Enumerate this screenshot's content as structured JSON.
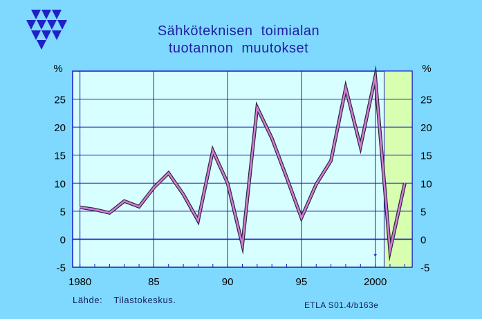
{
  "colors": {
    "background": "#7fd9ff",
    "plot_area": "#d8ffff",
    "forecast_area": "#d8ffb0",
    "grid": "#1818c8",
    "axis_text": "#000000",
    "title": "#2020a0",
    "line_fill": "#d27bd8",
    "line_edge": "#2a2a3a",
    "logo": "#2020c8"
  },
  "logo": {
    "icon": "etla-triangles-logo"
  },
  "chart_data": {
    "type": "line",
    "title": [
      "Sähköteknisen  toimialan",
      "tuotannon  muutokset"
    ],
    "y_unit_left": "%",
    "y_unit_right": "%",
    "xlim": [
      1979.5,
      2002.5
    ],
    "ylim": [
      -5,
      30
    ],
    "x_ticks": [
      1980,
      1985,
      1990,
      1995,
      2000
    ],
    "x_tick_labels": [
      "1980",
      "85",
      "90",
      "95",
      "2000"
    ],
    "y_ticks": [
      -5,
      0,
      5,
      10,
      15,
      20,
      25
    ],
    "y_tick_labels": [
      "-5",
      "0",
      "5",
      "10",
      "15",
      "20",
      "25"
    ],
    "grid": true,
    "forecast_region": [
      2000.6,
      2002.5
    ],
    "forecast_marker": "*",
    "forecast_marker_x": 2000,
    "series": [
      {
        "x": [
          1980,
          1981,
          1982,
          1983,
          1984,
          1985,
          1986,
          1987,
          1988,
          1989,
          1990,
          1991,
          1992,
          1993,
          1994,
          1995,
          1996,
          1997,
          1998,
          1999,
          2000,
          2001,
          2002
        ],
        "values": [
          5.7,
          5.3,
          4.7,
          6.8,
          5.8,
          9.2,
          11.8,
          8.0,
          3.3,
          15.8,
          10.0,
          -1.0,
          23.5,
          18.0,
          11.0,
          3.8,
          9.8,
          14.0,
          27.0,
          16.5,
          29.0,
          -2.0,
          10.0
        ]
      }
    ]
  },
  "footer": {
    "source": "Lähde:  Tilastokeskus.",
    "code": "ETLA S01.4/b163e"
  }
}
